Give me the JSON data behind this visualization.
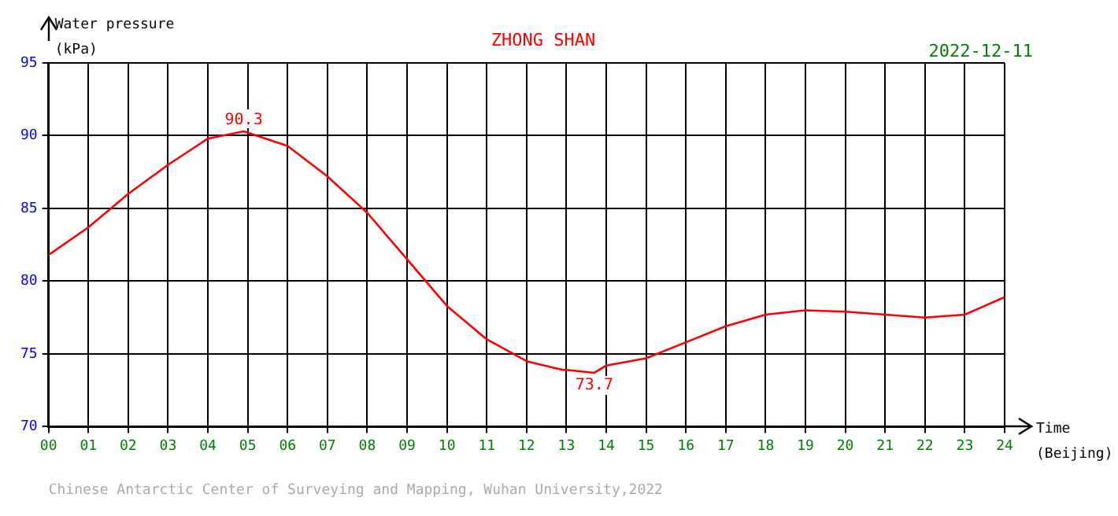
{
  "chart_data": {
    "type": "line",
    "title": "ZHONG SHAN",
    "subtitle": "2022-12-11",
    "ylabel": "Water pressure (kPa)",
    "xlabel": "Time (Beijing)",
    "x": [
      0,
      1,
      2,
      3,
      4,
      4.9,
      5,
      6,
      7,
      8,
      9,
      10,
      11,
      12,
      12.9,
      13,
      13.7,
      14,
      15,
      16,
      17,
      18,
      19,
      20,
      21,
      22,
      23,
      23.5,
      24
    ],
    "series": [
      {
        "color": "#ff0000",
        "values": [
          81.8,
          83.7,
          86.0,
          88.0,
          89.8,
          90.3,
          90.2,
          89.3,
          87.2,
          84.7,
          81.5,
          78.3,
          76.0,
          74.5,
          73.9,
          73.9,
          73.7,
          74.2,
          74.7,
          75.8,
          76.9,
          77.7,
          78.0,
          77.9,
          77.7,
          77.5,
          77.7,
          78.3,
          78.9
        ]
      }
    ],
    "xlim": [
      0,
      24
    ],
    "xticks": [
      {
        "value": 0,
        "label": "00"
      },
      {
        "value": 1,
        "label": "01"
      },
      {
        "value": 2,
        "label": "02"
      },
      {
        "value": 3,
        "label": "03"
      },
      {
        "value": 4,
        "label": "04"
      },
      {
        "value": 5,
        "label": "05"
      },
      {
        "value": 6,
        "label": "06"
      },
      {
        "value": 7,
        "label": "07"
      },
      {
        "value": 8,
        "label": "08"
      },
      {
        "value": 9,
        "label": "09"
      },
      10,
      11,
      12,
      13,
      14,
      15,
      16,
      17,
      18,
      19,
      20,
      21,
      22,
      23,
      24
    ],
    "ylim": [
      70,
      95
    ],
    "yticks": [
      70,
      75,
      80,
      85,
      90,
      95
    ],
    "grid": true,
    "line_style": "solid",
    "marker": "none",
    "legend": false,
    "annotations": [
      {
        "text": "90.3",
        "x": 4.9,
        "y": 90.3
      },
      {
        "text": "73.7",
        "x": 13.7,
        "y": 73.7
      },
      "Chinese Antarctic Center of Surveying and Mapping, Wuhan University,2022"
    ]
  }
}
